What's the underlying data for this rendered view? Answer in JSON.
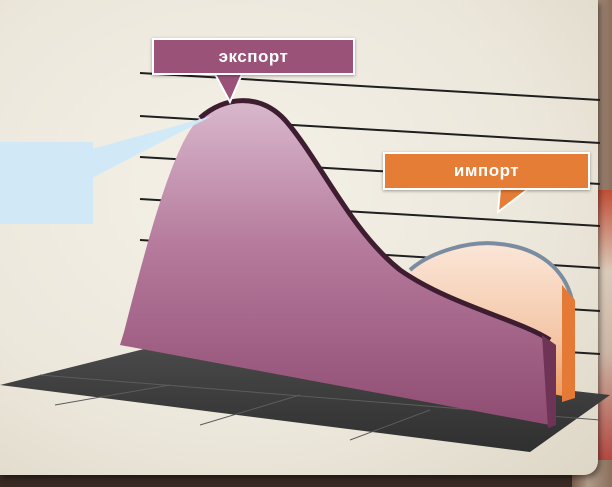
{
  "labels": {
    "export": "экспорт",
    "import": "импорт"
  },
  "colors": {
    "export": "#9b5278",
    "import": "#e57d36",
    "floor": "#3c3c3c",
    "side_panel": "#cfe9f8",
    "paper": "#efeadf"
  }
}
